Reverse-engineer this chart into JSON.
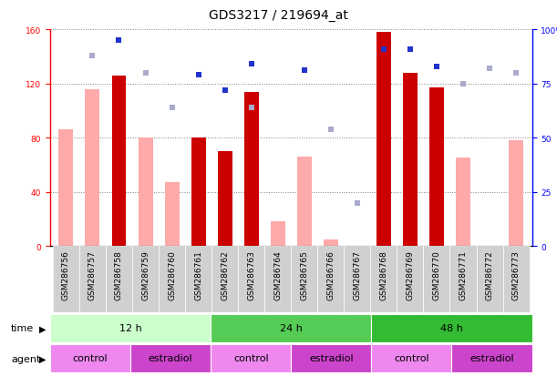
{
  "title": "GDS3217 / 219694_at",
  "samples": [
    "GSM286756",
    "GSM286757",
    "GSM286758",
    "GSM286759",
    "GSM286760",
    "GSM286761",
    "GSM286762",
    "GSM286763",
    "GSM286764",
    "GSM286765",
    "GSM286766",
    "GSM286767",
    "GSM286768",
    "GSM286769",
    "GSM286770",
    "GSM286771",
    "GSM286772",
    "GSM286773"
  ],
  "red_bars": [
    0,
    0,
    126,
    0,
    0,
    80,
    70,
    114,
    0,
    0,
    0,
    0,
    158,
    128,
    117,
    0,
    0,
    0
  ],
  "pink_bars": [
    86,
    116,
    0,
    80,
    47,
    0,
    0,
    0,
    18,
    66,
    5,
    0,
    0,
    0,
    0,
    65,
    0,
    78
  ],
  "blue_squares": [
    0,
    0,
    95,
    0,
    0,
    79,
    72,
    84,
    0,
    81,
    0,
    0,
    91,
    91,
    83,
    0,
    0,
    0
  ],
  "lavender_squares": [
    0,
    88,
    0,
    80,
    64,
    0,
    0,
    64,
    0,
    0,
    54,
    20,
    0,
    0,
    0,
    75,
    82,
    80
  ],
  "time_labels": [
    "12 h",
    "24 h",
    "48 h"
  ],
  "time_starts": [
    0,
    6,
    12
  ],
  "time_ends": [
    6,
    12,
    18
  ],
  "time_colors": [
    "#ccffcc",
    "#55cc55",
    "#33bb33"
  ],
  "agent_labels": [
    "control",
    "estradiol",
    "control",
    "estradiol",
    "control",
    "estradiol"
  ],
  "agent_starts": [
    0,
    3,
    6,
    9,
    12,
    15
  ],
  "agent_ends": [
    3,
    6,
    9,
    12,
    15,
    18
  ],
  "agent_colors": [
    "#ee88ee",
    "#cc44cc",
    "#ee88ee",
    "#cc44cc",
    "#ee88ee",
    "#cc44cc"
  ],
  "ylim_left": [
    0,
    160
  ],
  "ylim_right": [
    0,
    100
  ],
  "yticks_left": [
    0,
    40,
    80,
    120,
    160
  ],
  "yticks_right": [
    0,
    25,
    50,
    75,
    100
  ],
  "red_color": "#cc0000",
  "pink_color": "#ffaaaa",
  "blue_color": "#2233cc",
  "lavender_color": "#aaaacc",
  "title_fontsize": 10,
  "tick_fontsize": 6.5,
  "label_fontsize": 8
}
